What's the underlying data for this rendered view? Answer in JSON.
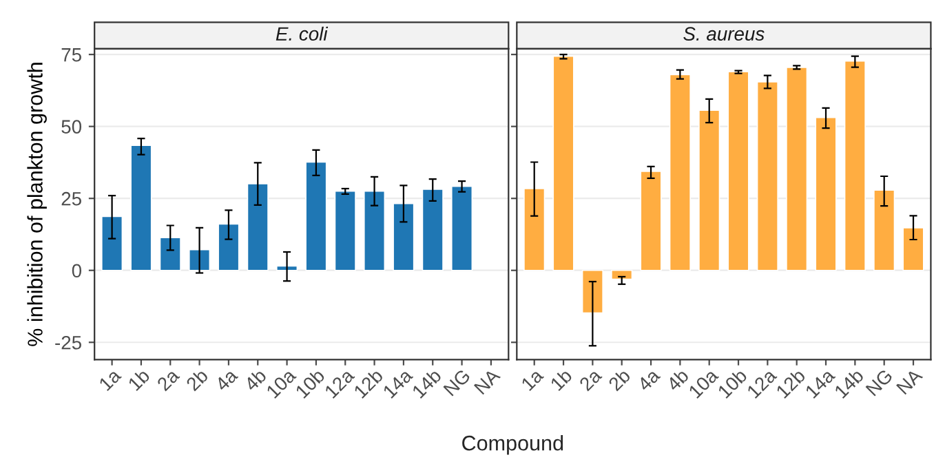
{
  "chart_data": [
    {
      "type": "bar",
      "title": "E. coli",
      "ylabel": "% inhibition of plankton growth",
      "xlabel": "Compound",
      "categories": [
        "1a",
        "1b",
        "2a",
        "2b",
        "4a",
        "4b",
        "10a",
        "10b",
        "12a",
        "12b",
        "14a",
        "14b",
        "NG",
        "NA"
      ],
      "series": [
        {
          "color": "#1f77b4",
          "values": [
            18.7,
            43.4,
            11.4,
            7.2,
            16.1,
            30.1,
            1.5,
            37.6,
            27.5,
            27.5,
            23.2,
            28.2,
            29.2,
            null
          ],
          "errors": [
            [
              11.0,
              26.0
            ],
            [
              40.2,
              45.8
            ],
            [
              7.0,
              15.6
            ],
            [
              -0.9,
              14.8
            ],
            [
              10.8,
              20.9
            ],
            [
              22.7,
              37.4
            ],
            [
              -3.7,
              6.4
            ],
            [
              33.0,
              41.8
            ],
            [
              26.5,
              28.4
            ],
            [
              22.5,
              32.5
            ],
            [
              16.8,
              29.5
            ],
            [
              24.1,
              31.7
            ],
            [
              27.3,
              31.0
            ],
            null
          ]
        }
      ],
      "ylim": [
        -31,
        77
      ],
      "yticks": [
        -25,
        0,
        25,
        50,
        75
      ],
      "grid": "y"
    },
    {
      "type": "bar",
      "title": "S. aureus",
      "categories": [
        "1a",
        "1b",
        "2a",
        "2b",
        "4a",
        "4b",
        "10a",
        "10b",
        "12a",
        "12b",
        "14a",
        "14b",
        "NG",
        "NA"
      ],
      "series": [
        {
          "color": "#ffad41",
          "values": [
            28.4,
            74.4,
            -14.8,
            -3.1,
            34.4,
            68.0,
            55.6,
            69.0,
            65.5,
            70.5,
            53.1,
            72.7,
            27.9,
            14.8
          ],
          "errors": [
            [
              18.9,
              37.6
            ],
            [
              73.5,
              75.0
            ],
            [
              -26.2,
              -3.9
            ],
            [
              -4.8,
              -2.2
            ],
            [
              32.0,
              36.1
            ],
            [
              66.5,
              69.6
            ],
            [
              51.3,
              59.5
            ],
            [
              68.4,
              69.4
            ],
            [
              63.2,
              67.7
            ],
            [
              69.9,
              71.1
            ],
            [
              49.4,
              56.4
            ],
            [
              70.6,
              74.4
            ],
            [
              22.4,
              32.7
            ],
            [
              10.7,
              19.0
            ]
          ]
        }
      ],
      "ylim": [
        -31,
        77
      ],
      "yticks": [
        -25,
        0,
        25,
        50,
        75
      ],
      "grid": "y",
      "tick_labels": "x"
    }
  ]
}
